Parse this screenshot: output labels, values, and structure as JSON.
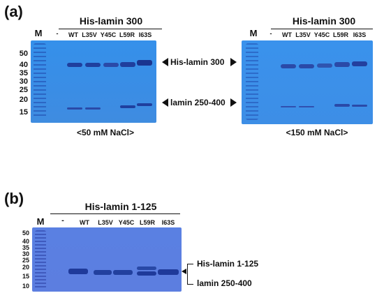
{
  "panel_a": {
    "label": "(a)",
    "left": {
      "title": "His-lamin 300",
      "marker_header": "M",
      "lanes": [
        "-",
        "WT",
        "L35V",
        "Y45C",
        "L59R",
        "I63S"
      ],
      "markers": [
        "50",
        "40",
        "35",
        "30",
        "25",
        "20",
        "15"
      ],
      "condition": "<50 mM NaCl>"
    },
    "right": {
      "title": "His-lamin 300",
      "marker_header": "M",
      "lanes": [
        "-",
        "WT",
        "L35V",
        "Y45C",
        "L59R",
        "I63S"
      ],
      "condition": "<150 mM NaCl>"
    },
    "annotation_top": "His-lamin 300",
    "annotation_bottom": "lamin 250-400"
  },
  "panel_b": {
    "label": "(b)",
    "title": "His-lamin 1-125",
    "marker_header": "M",
    "lanes": [
      "-",
      "WT",
      "L35V",
      "Y45C",
      "L59R",
      "I63S"
    ],
    "markers": [
      "50",
      "40",
      "35",
      "30",
      "25",
      "20",
      "15",
      "10"
    ],
    "annotation_top": "His-lamin 1-125",
    "annotation_bottom": "lamin 250-400"
  },
  "colors": {
    "gel_a": "#3a8fe6",
    "gel_b": "#5a7fe0",
    "band": "#1f3f9e",
    "marker_band": "#2f5fc4"
  }
}
